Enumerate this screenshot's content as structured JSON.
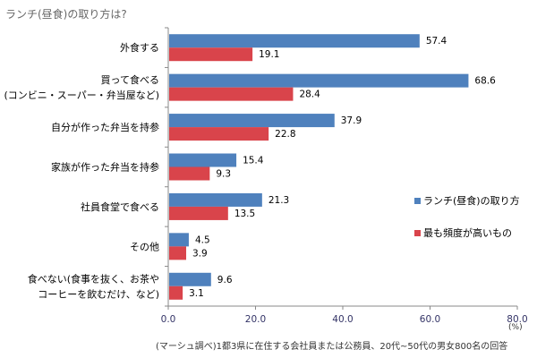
{
  "chart_data": {
    "type": "bar",
    "orientation": "horizontal",
    "title": "ランチ(昼食)の取り方は?",
    "categories": [
      [
        "外食する"
      ],
      [
        "買って食べる",
        "(コンビニ・スーパー・弁当屋など)"
      ],
      [
        "自分が作った弁当を持参"
      ],
      [
        "家族が作った弁当を持参"
      ],
      [
        "社員食堂で食べる"
      ],
      [
        "その他"
      ],
      [
        "食べない(食事を抜く、お茶や",
        "コーヒーを飲むだけ、など)"
      ]
    ],
    "series": [
      {
        "name": "ランチ(昼食)の取り方",
        "color": "#4F81BD",
        "values": [
          57.4,
          68.6,
          37.9,
          15.4,
          21.3,
          4.5,
          9.6
        ]
      },
      {
        "name": "最も頻度が高いもの",
        "color": "#D9444B",
        "values": [
          19.1,
          28.4,
          22.8,
          9.3,
          13.5,
          3.9,
          3.1
        ]
      }
    ],
    "xlim": [
      0,
      80
    ],
    "xticks": [
      "0.0",
      "20.0",
      "40.0",
      "60.0",
      "80.0"
    ],
    "xunit": "(%)",
    "legend_position": "right",
    "note": "(マーシュ調べ)1都3県に在住する会社員または公務員、20代~50代の男女800名の回答"
  }
}
